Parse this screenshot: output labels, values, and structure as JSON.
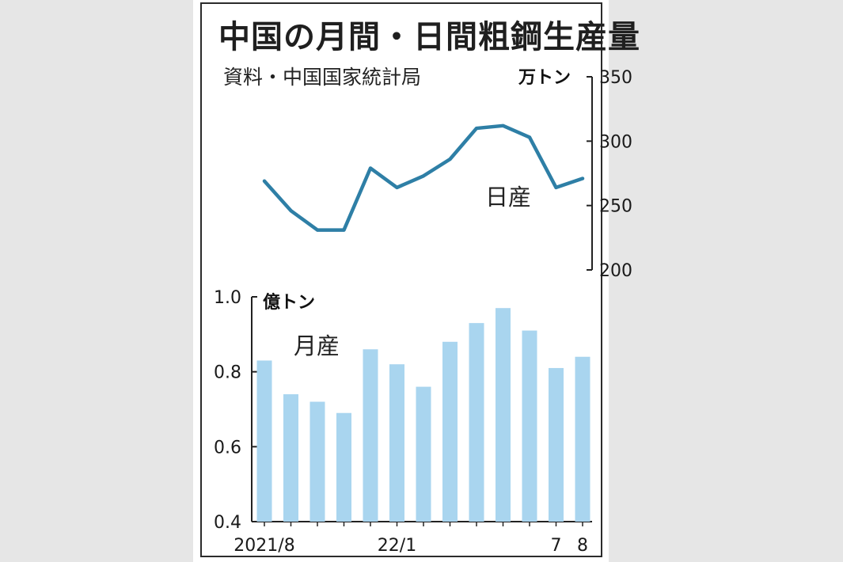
{
  "header": {
    "title": "中国の月間・日間粗鋼生産量",
    "source": "資料・中国国家統計局"
  },
  "chart_data": [
    {
      "type": "line",
      "series": [
        {
          "name": "日産",
          "values": [
            269,
            246,
            231,
            231,
            279,
            264,
            273,
            286,
            310,
            312,
            303,
            264,
            271
          ]
        }
      ],
      "unit": "万トン",
      "ylim": [
        200,
        350
      ],
      "yticks": [
        "200",
        "250",
        "300",
        "350"
      ],
      "color": "#2e7fa6"
    },
    {
      "type": "bar",
      "series": [
        {
          "name": "月産",
          "values": [
            0.83,
            0.74,
            0.72,
            0.69,
            0.86,
            0.82,
            0.76,
            0.88,
            0.93,
            0.97,
            0.91,
            0.81,
            0.84
          ]
        }
      ],
      "unit": "億トン",
      "ylim": [
        0.4,
        1.0
      ],
      "yticks": [
        "0.4",
        "0.6",
        "0.8",
        "1.0"
      ],
      "x_tick_labels": [
        {
          "index": 0,
          "label": "2021/8"
        },
        {
          "index": 5,
          "label": "22/1"
        },
        {
          "index": 11,
          "label": "7"
        },
        {
          "index": 12,
          "label": "8"
        }
      ],
      "color": "#a9d5ef"
    }
  ]
}
